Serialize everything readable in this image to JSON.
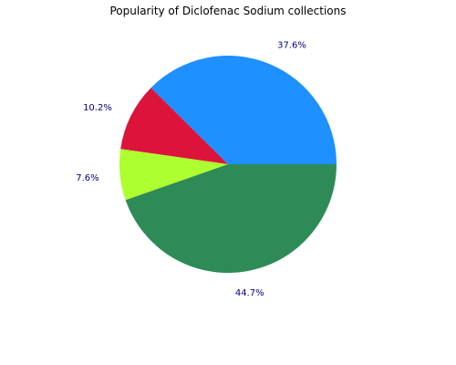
{
  "chart_data": {
    "type": "pie",
    "title": "Popularity of Diclofenac Sodium collections",
    "slices": [
      {
        "value": 37.6,
        "label": "37.6%",
        "color": "#1e90ff"
      },
      {
        "value": 10.2,
        "label": "10.2%",
        "color": "#dc143c"
      },
      {
        "value": 7.6,
        "label": "7.6%",
        "color": "#adff2f"
      },
      {
        "value": 44.7,
        "label": "44.7%",
        "color": "#2e8b57"
      }
    ],
    "legend": "none",
    "grid": false
  }
}
